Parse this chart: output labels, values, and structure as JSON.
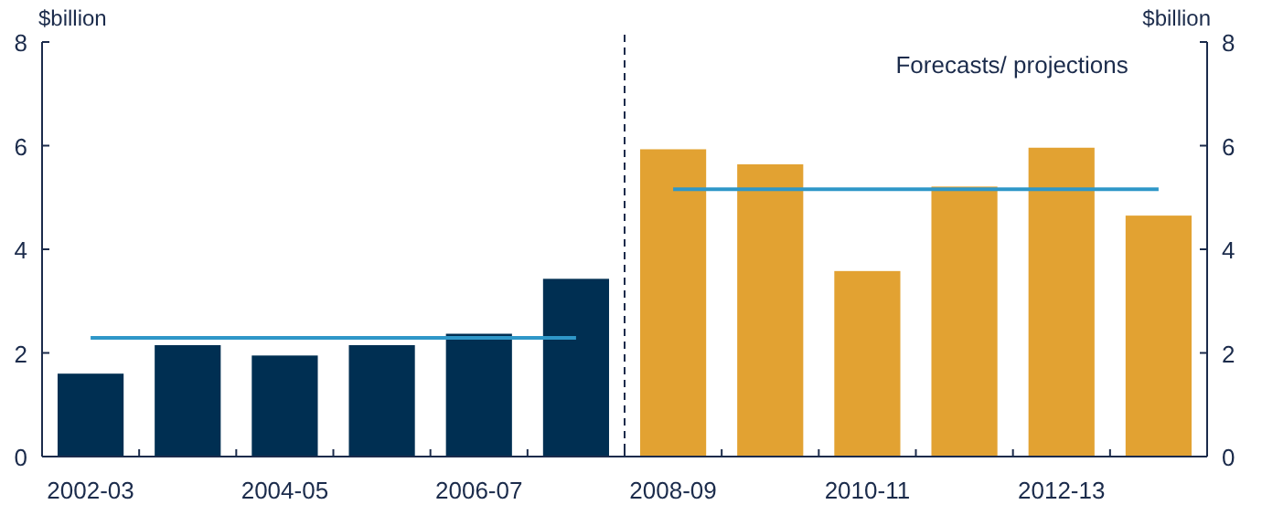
{
  "chart_data": {
    "type": "bar",
    "ylabel": "$billion",
    "y2label": "$billion",
    "categories": [
      "2002-03",
      null,
      "2004-05",
      null,
      "2006-07",
      null,
      "2008-09",
      null,
      "2010-11",
      null,
      "2012-13",
      null
    ],
    "series": [
      {
        "colors": [
          "#002f52",
          "#002f52",
          "#002f52",
          "#002f52",
          "#002f52",
          "#002f52",
          "#e2a232",
          "#e2a232",
          "#e2a232",
          "#e2a232",
          "#e2a232",
          "#e2a232"
        ],
        "values": [
          1.6,
          2.15,
          1.95,
          2.15,
          2.37,
          3.43,
          5.93,
          5.64,
          3.58,
          5.21,
          5.96,
          4.65
        ]
      },
      {
        "type": "line",
        "color": "#2f97c8",
        "values": [
          2.29,
          2.29,
          2.29,
          2.29,
          2.29,
          2.29,
          null,
          null,
          null,
          null,
          null,
          null
        ]
      },
      {
        "type": "line",
        "color": "#2f97c8",
        "values": [
          null,
          null,
          null,
          null,
          null,
          null,
          5.16,
          5.16,
          5.16,
          5.16,
          5.16,
          5.16
        ]
      }
    ],
    "ylim": [
      0,
      8
    ],
    "yticks": [
      0,
      2,
      4,
      6,
      8
    ],
    "y2lim": [
      0,
      8
    ],
    "y2ticks": [
      0,
      2,
      4,
      6,
      8
    ],
    "annotations": [
      "Forecasts/ projections"
    ],
    "grid": false
  }
}
